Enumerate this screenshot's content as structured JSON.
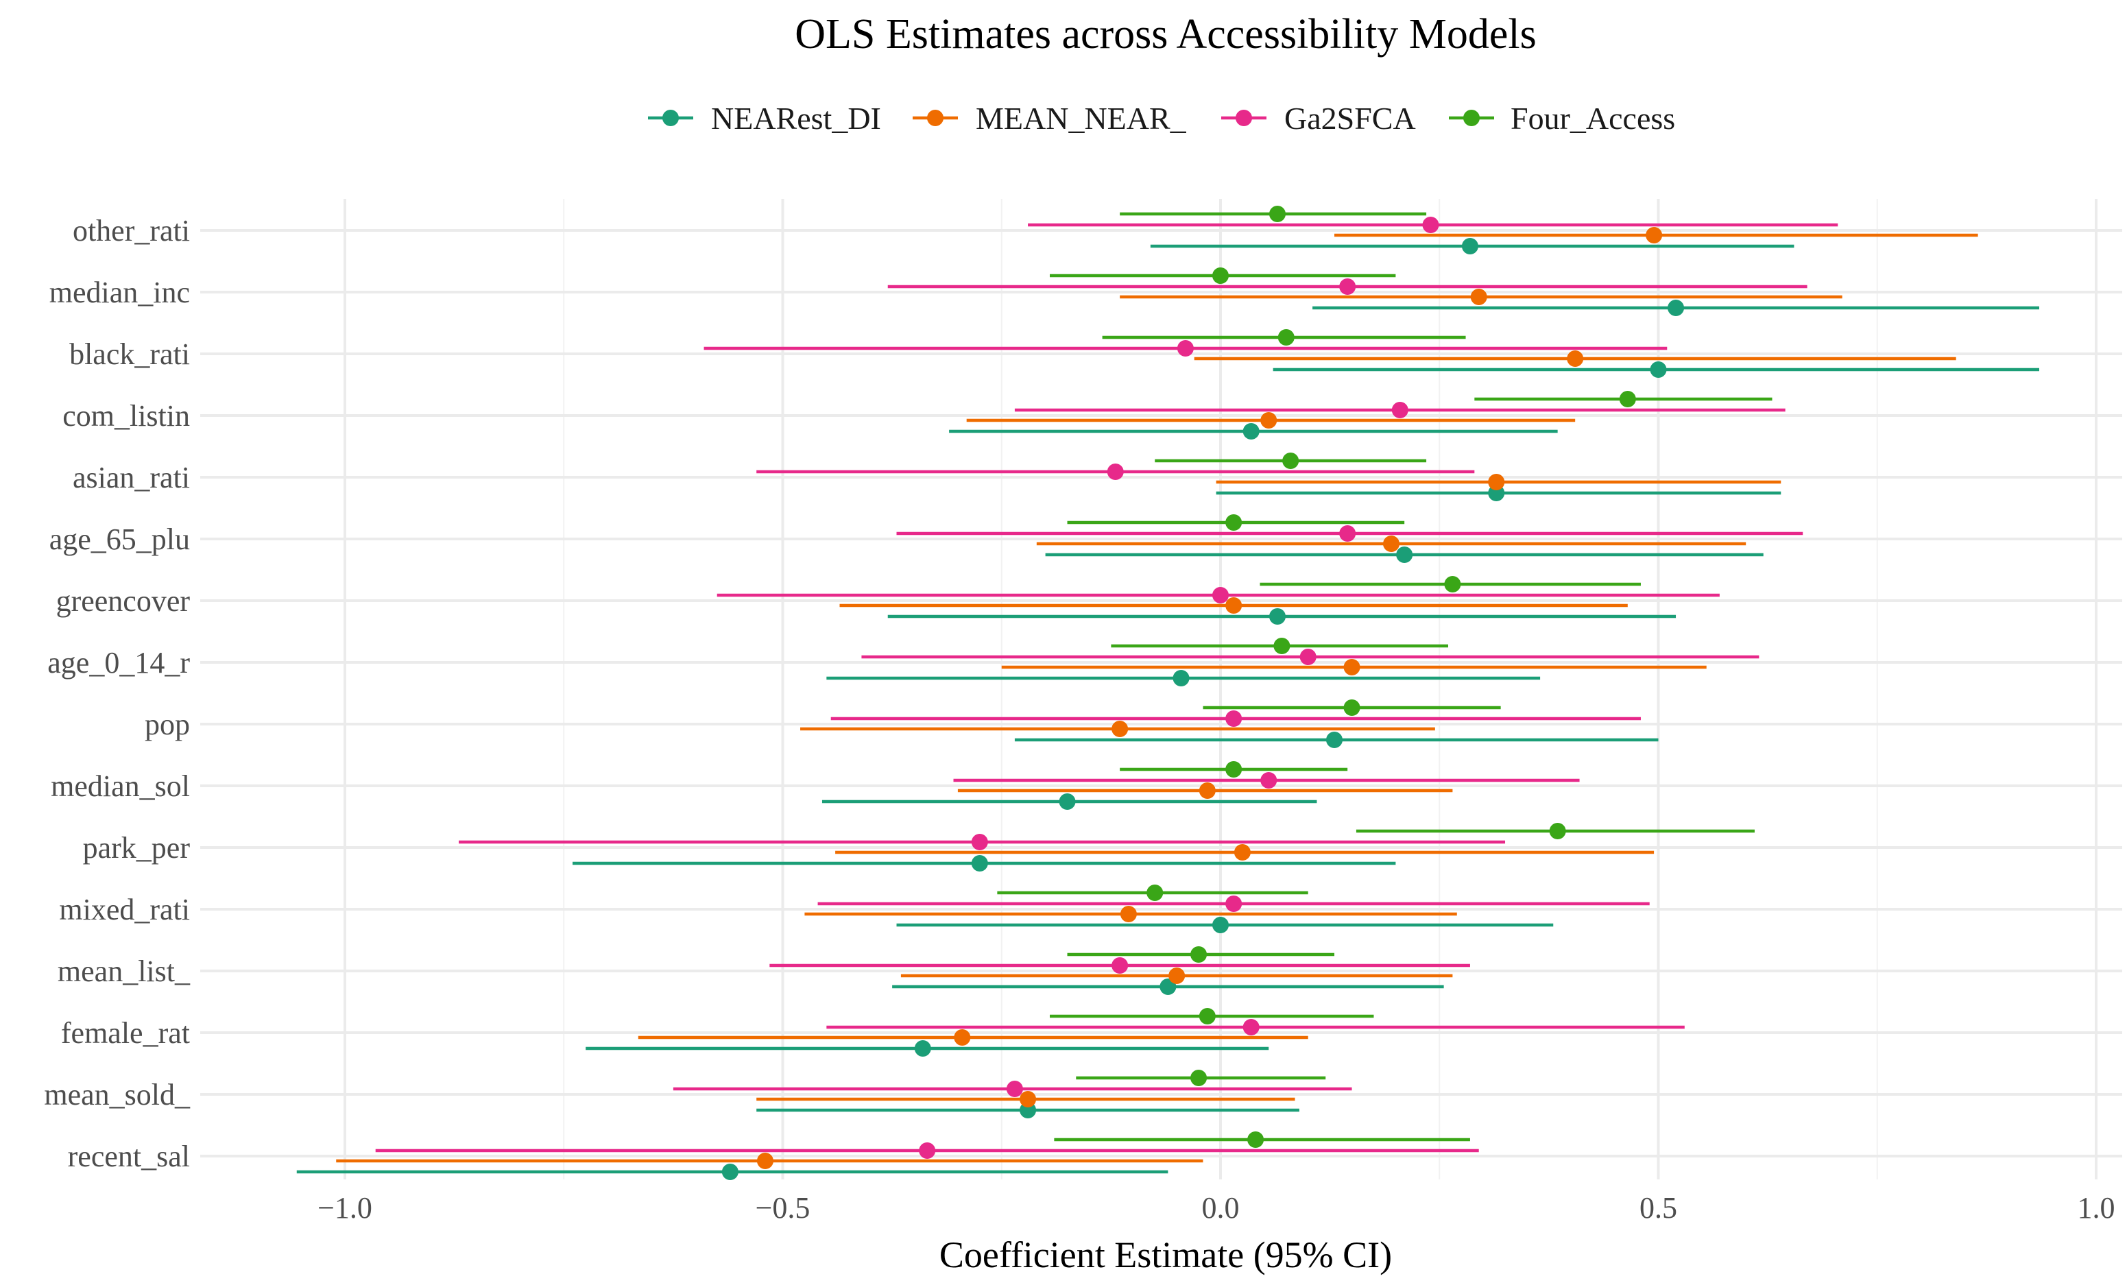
{
  "chart_data": {
    "type": "scatter",
    "subtype": "forest-plot",
    "title": "OLS Estimates across Accessibility Models",
    "xlabel": "Coefficient Estimate (95% CI)",
    "ylabel": "",
    "xlim": [
      -1.05,
      1.03
    ],
    "xticks": [
      -1.0,
      -0.5,
      0.0,
      0.5,
      1.0
    ],
    "xtick_labels": [
      "−1.0",
      "−0.5",
      "0.0",
      "0.5",
      "1.0"
    ],
    "grid": true,
    "legend_position": "top",
    "categories": [
      "other_rati",
      "median_inc",
      "black_rati",
      "com_listin",
      "asian_rati",
      "age_65_plu",
      "greencover",
      "age_0_14_r",
      "pop",
      "median_sol",
      "park_per",
      "mixed_rati",
      "mean_list_",
      "female_rat",
      "mean_sold_",
      "recent_sal"
    ],
    "series": [
      {
        "name": "NEARest_DI",
        "color": "#1b9e77",
        "estimates": [
          0.285,
          0.52,
          0.5,
          0.035,
          0.315,
          0.21,
          0.065,
          -0.045,
          0.13,
          -0.175,
          -0.275,
          0.0,
          -0.06,
          -0.34,
          -0.22,
          -0.56
        ],
        "lower": [
          -0.08,
          0.105,
          0.06,
          -0.31,
          -0.005,
          -0.2,
          -0.38,
          -0.45,
          -0.235,
          -0.455,
          -0.74,
          -0.37,
          -0.375,
          -0.725,
          -0.53,
          -1.055
        ],
        "upper": [
          0.655,
          0.935,
          0.935,
          0.385,
          0.64,
          0.62,
          0.52,
          0.365,
          0.5,
          0.11,
          0.2,
          0.38,
          0.255,
          0.055,
          0.09,
          -0.06
        ]
      },
      {
        "name": "MEAN_NEAR_",
        "color": "#ef6c00",
        "estimates": [
          0.495,
          0.295,
          0.405,
          0.055,
          0.315,
          0.195,
          0.015,
          0.15,
          -0.115,
          -0.015,
          0.025,
          -0.105,
          -0.05,
          -0.295,
          -0.22,
          -0.52
        ],
        "lower": [
          0.13,
          -0.115,
          -0.03,
          -0.29,
          -0.005,
          -0.21,
          -0.435,
          -0.25,
          -0.48,
          -0.3,
          -0.44,
          -0.475,
          -0.365,
          -0.665,
          -0.53,
          -1.01
        ],
        "upper": [
          0.865,
          0.71,
          0.84,
          0.405,
          0.64,
          0.6,
          0.465,
          0.555,
          0.245,
          0.265,
          0.495,
          0.27,
          0.265,
          0.1,
          0.085,
          -0.02
        ]
      },
      {
        "name": "Ga2SFCA",
        "color": "#e7298a",
        "estimates": [
          0.24,
          0.145,
          -0.04,
          0.205,
          -0.12,
          0.145,
          0.0,
          0.1,
          0.015,
          0.055,
          -0.275,
          0.015,
          -0.115,
          0.035,
          -0.235,
          -0.335
        ],
        "lower": [
          -0.22,
          -0.38,
          -0.59,
          -0.235,
          -0.53,
          -0.37,
          -0.575,
          -0.41,
          -0.445,
          -0.305,
          -0.87,
          -0.46,
          -0.515,
          -0.45,
          -0.625,
          -0.965
        ],
        "upper": [
          0.705,
          0.67,
          0.51,
          0.645,
          0.29,
          0.665,
          0.57,
          0.615,
          0.48,
          0.41,
          0.325,
          0.49,
          0.285,
          0.53,
          0.15,
          0.295
        ]
      },
      {
        "name": "Four_Access",
        "color": "#3aa617",
        "estimates": [
          0.065,
          0.0,
          0.075,
          0.465,
          0.08,
          0.015,
          0.265,
          0.07,
          0.15,
          0.015,
          0.385,
          -0.075,
          -0.025,
          -0.015,
          -0.025,
          0.04
        ],
        "lower": [
          -0.115,
          -0.195,
          -0.135,
          0.29,
          -0.075,
          -0.175,
          0.045,
          -0.125,
          -0.02,
          -0.115,
          0.155,
          -0.255,
          -0.175,
          -0.195,
          -0.165,
          -0.19
        ],
        "upper": [
          0.235,
          0.2,
          0.28,
          0.63,
          0.235,
          0.21,
          0.48,
          0.26,
          0.32,
          0.145,
          0.61,
          0.1,
          0.13,
          0.175,
          0.12,
          0.285
        ]
      }
    ]
  }
}
